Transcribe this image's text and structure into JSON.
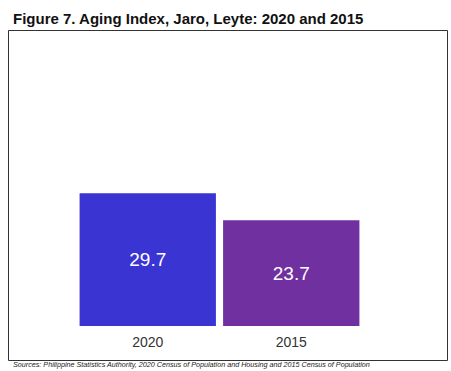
{
  "chart_data": {
    "type": "bar",
    "title": "Figure 7. Aging Index, Jaro, Leyte: 2020 and 2015",
    "source": "Sources: Philippine Statistics Authority, 2020 Census of Population and Housing and 2015 Census of Population",
    "categories": [
      "2020",
      "2015"
    ],
    "values": [
      29.7,
      23.7
    ],
    "colors": [
      "#3a34d2",
      "#7030a0"
    ],
    "ylim": [
      0,
      30
    ],
    "yticks": [
      0,
      30
    ],
    "grid": false,
    "data_labels": true,
    "tick_labels": "x"
  }
}
